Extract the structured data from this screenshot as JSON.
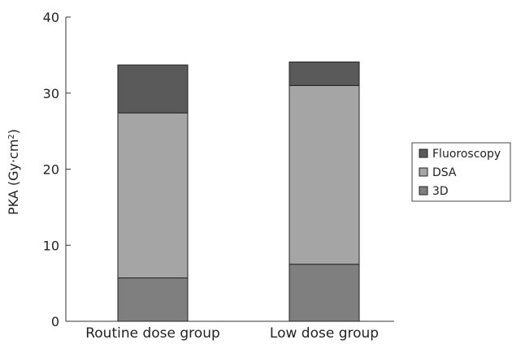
{
  "chart_data": {
    "type": "bar",
    "stacked": true,
    "categories": [
      "Routine dose group",
      "Low dose group"
    ],
    "series": [
      {
        "name": "3D",
        "values": [
          5.7,
          7.5
        ],
        "color": "#7f7f7f"
      },
      {
        "name": "DSA",
        "values": [
          21.7,
          23.5
        ],
        "color": "#a5a5a5"
      },
      {
        "name": "Fluoroscopy",
        "values": [
          6.3,
          3.1
        ],
        "color": "#5a5a5a"
      }
    ],
    "ylabel": "PKA (Gy·cm",
    "ylabel_sup": "2",
    "ylabel_suffix": ")",
    "ylim": [
      0,
      40
    ],
    "yticks": [
      0,
      10,
      20,
      30,
      40
    ],
    "grid": false,
    "legend_position": "right",
    "legend_order": [
      "Fluoroscopy",
      "DSA",
      "3D"
    ]
  }
}
